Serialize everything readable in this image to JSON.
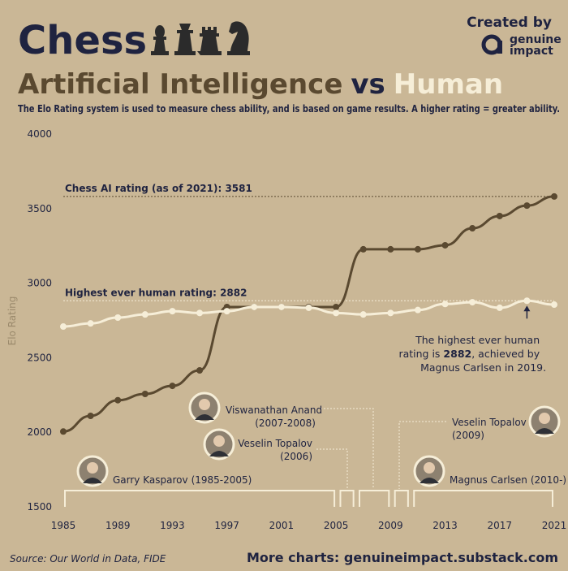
{
  "header": {
    "title": "Chess",
    "created_by": "Created by",
    "brand_line1": "genuine",
    "brand_line2": "impact",
    "subtitle_part1": "Artificial Intelligence",
    "subtitle_part2": "vs",
    "subtitle_part3": "Human",
    "description": "The Elo Rating system is used to measure chess ability, and is based on game results. A higher rating = greater ability."
  },
  "chart_data": {
    "type": "line",
    "y_label": "Elo Rating",
    "x": [
      1985,
      1987,
      1989,
      1991,
      1993,
      1995,
      1997,
      1999,
      2001,
      2003,
      2005,
      2007,
      2009,
      2011,
      2013,
      2015,
      2017,
      2019,
      2021
    ],
    "series": [
      {
        "name": "Artificial Intelligence",
        "color": "#5a4930",
        "values": [
          2005,
          2110,
          2215,
          2257,
          2311,
          2415,
          2840,
          2840,
          2840,
          2840,
          2840,
          3227,
          3227,
          3227,
          3254,
          3368,
          3450,
          3520,
          3581
        ]
      },
      {
        "name": "Human",
        "color": "#f6eed8",
        "values": [
          2709,
          2730,
          2769,
          2790,
          2812,
          2800,
          2812,
          2840,
          2840,
          2835,
          2800,
          2790,
          2800,
          2820,
          2860,
          2872,
          2835,
          2882,
          2856
        ]
      }
    ],
    "xlim": [
      1985,
      2021
    ],
    "xticks": [
      1985,
      1989,
      1993,
      1997,
      2001,
      2005,
      2009,
      2013,
      2017,
      2021
    ],
    "ylim": [
      1500,
      4000
    ],
    "yticks": [
      1500,
      2000,
      2500,
      3000,
      3500,
      4000
    ],
    "grid": false,
    "reference_lines": [
      {
        "label": "Chess AI rating (as of 2021): 3581",
        "value": 3581
      },
      {
        "label": "Highest ever human rating: 2882",
        "value": 2882
      }
    ],
    "annotation": {
      "line1": "The highest ever human",
      "line2_start": "rating is ",
      "line2_bold": "2882",
      "line2_end": ", achieved by",
      "line3": "Magnus Carlsen in 2019."
    },
    "eras": [
      {
        "name": "Garry Kasparov",
        "period": "(1985-2005)",
        "start": 1985,
        "end": 2005
      },
      {
        "name": "Veselin Topalov",
        "period": "(2006)",
        "start": 2005.2,
        "end": 2006.4
      },
      {
        "name": "Viswanathan Anand",
        "period": "(2007-2008)",
        "start": 2006.6,
        "end": 2009
      },
      {
        "name": "Veselin Topalov",
        "period": "(2009)",
        "start": 2009.2,
        "end": 2010.4
      },
      {
        "name": "Magnus Carlsen",
        "period": "(2010-)",
        "start": 2010.6,
        "end": 2021
      }
    ]
  },
  "footer": {
    "source": "Source: Our World in Data, FIDE",
    "more": "More charts: genuineimpact.substack.com"
  }
}
